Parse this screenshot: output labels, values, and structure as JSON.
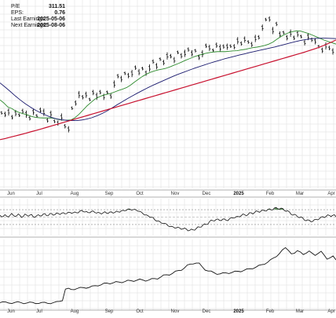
{
  "stats": [
    {
      "label": "P/E",
      "value": "311.51"
    },
    {
      "label": "EPS:",
      "value": "0.76"
    },
    {
      "label": "Last Earnings:",
      "value": "2025-05-06"
    },
    {
      "label": "Next Earnings:",
      "value": "2025-08-06"
    }
  ],
  "colors": {
    "price": "#000000",
    "sma_short": "#2e8b2e",
    "sma_mid": "#1a1a6e",
    "sma_long": "#c8102e",
    "indicator_fill": "#3d7a3d",
    "grid": "#dddddd",
    "panel_border": "#999999"
  },
  "chart_data": [
    {
      "type": "line",
      "panel": "price",
      "x_tick_labels": [
        "Jun",
        "Jul",
        "Aug",
        "Sep",
        "Oct",
        "Nov",
        "Dec",
        "2025",
        "Feb",
        "Mar",
        "Apr"
      ],
      "ylim": [
        0,
        100
      ],
      "grid": true,
      "series": [
        {
          "key": "price",
          "values": [
            40.1,
            39.3,
            40.6,
            37.8,
            40.0,
            38.9,
            40.9,
            39.4,
            37.2,
            40.6,
            38.5,
            41.5,
            40.4,
            36.1,
            39.6,
            35.6,
            34.7,
            37.9,
            33.0,
            31.4,
            42.6,
            45.3,
            49.8,
            48.4,
            49.7,
            47.2,
            50.9,
            48.9,
            51.1,
            48.6,
            51.0,
            48.9,
            55.4,
            59.6,
            58.1,
            61.1,
            59.9,
            61.0,
            64.1,
            61.7,
            63.6,
            61.2,
            63.9,
            67.3,
            64.9,
            68.6,
            66.8,
            70.3,
            70.2,
            68.1,
            72.2,
            70.4,
            71.7,
            73.7,
            71.7,
            73.1,
            69.6,
            71.5,
            75.7,
            74.6,
            73.3,
            76.0,
            74.5,
            75.3,
            75.2,
            75.5,
            75.2,
            78.4,
            76.9,
            79.0,
            77.7,
            76.4,
            79.6,
            80.2,
            85.3,
            89.6,
            89.9,
            83.8,
            87.3,
            81.7,
            82.7,
            80.0,
            82.4,
            79.9,
            82.0,
            80.6,
            77.3,
            80.6,
            78.9,
            78.1,
            75.3,
            73.3,
            75.6,
            74.5,
            72.7
          ]
        },
        {
          "key": "sma_short",
          "values": [
            47.0,
            45.3,
            43.2,
            42.4,
            41.0,
            40.2,
            39.6,
            39.0,
            38.2,
            37.7,
            37.5,
            37.4,
            37.4,
            37.4,
            37.0,
            36.5,
            36.3,
            36.2,
            36.4,
            37.6,
            39.4,
            41.6,
            43.8,
            45.6,
            47.4,
            48.5,
            49.4,
            49.9,
            50.4,
            51.2,
            52.0,
            52.7,
            53.5,
            54.8,
            56.4,
            57.9,
            59.4,
            60.6,
            61.6,
            62.3,
            62.9,
            63.3,
            63.8,
            64.5,
            65.4,
            66.2,
            67.1,
            68.1,
            68.9,
            69.8,
            70.5,
            71.1,
            71.7,
            72.1,
            72.4,
            72.6,
            72.6,
            72.6,
            72.8,
            73.0,
            73.1,
            73.5,
            73.8,
            74.3,
            74.7,
            75.0,
            75.4,
            75.9,
            76.6,
            77.6,
            79.1,
            80.5,
            81.7,
            82.6,
            83.2,
            83.6,
            83.5,
            82.9,
            82.2,
            81.4,
            80.5,
            79.6,
            78.7,
            78.0,
            77.3,
            76.6
          ]
        },
        {
          "key": "sma_mid",
          "values": [
            56.0,
            53.8,
            51.5,
            49.1,
            46.9,
            44.9,
            43.1,
            41.5,
            40.1,
            38.9,
            37.8,
            37.0,
            36.5,
            36.2,
            36.0,
            36.0,
            36.3,
            36.8,
            37.5,
            38.5,
            39.7,
            41.1,
            42.7,
            44.4,
            46.0,
            47.6,
            49.1,
            50.6,
            52.0,
            53.4,
            54.7,
            55.9,
            57.1,
            58.3,
            59.5,
            60.6,
            61.6,
            62.6,
            63.6,
            64.5,
            65.4,
            66.3,
            67.1,
            67.9,
            68.7,
            69.4,
            70.1,
            70.8,
            71.4,
            72.1,
            72.7,
            73.3,
            73.9,
            74.5,
            75.1,
            75.8,
            76.5,
            77.2,
            77.9,
            78.5,
            79.0,
            79.4,
            79.6,
            79.7,
            79.7,
            79.6,
            79.5
          ]
        },
        {
          "key": "sma_long",
          "values": [
            25.9,
            26.5,
            27.2,
            27.9,
            28.6,
            29.3,
            30.1,
            30.8,
            31.6,
            32.4,
            33.2,
            34.0,
            34.8,
            35.6,
            36.4,
            37.2,
            38.0,
            38.8,
            39.6,
            40.4,
            41.2,
            42.0,
            42.8,
            43.6,
            44.4,
            45.2,
            46.0,
            46.8,
            47.6,
            48.4,
            49.2,
            50.0,
            50.8,
            51.6,
            52.4,
            53.2,
            54.0,
            54.8,
            55.6,
            56.4,
            57.2,
            58.0,
            58.8,
            59.6,
            60.4,
            61.2,
            62.0,
            62.8,
            63.6,
            64.4,
            65.2,
            66.0,
            66.8,
            67.6,
            68.4,
            69.2,
            70.0,
            70.8,
            71.6,
            72.4,
            73.3,
            74.2,
            75.2,
            76.3,
            77.5,
            78.8
          ]
        }
      ]
    },
    {
      "type": "area",
      "panel": "indicator",
      "ylim": [
        0,
        100
      ],
      "reference_lines": [
        50,
        70,
        30
      ],
      "values": [
        55.0,
        50.6,
        52.2,
        56.6,
        52.6,
        50.3,
        54.8,
        60.0,
        54.9,
        51.8,
        53.5,
        58.4,
        54.8,
        49.1,
        52.0,
        58.1,
        55.5,
        52.6,
        55.6,
        57.1,
        50.8,
        49.5,
        53.7,
        56.5,
        53.3,
        53.3,
        58.3,
        59.5,
        53.7,
        54.0,
        59.6,
        59.6,
        55.3,
        56.4,
        61.3,
        59.9,
        56.8,
        60.2,
        62.2,
        59.1,
        59.3,
        63.1,
        63.0,
        60.3,
        61.7,
        64.0,
        61.7,
        61.6,
        66.3,
        68.4,
        64.9,
        63.9,
        65.4,
        62.3,
        61.8,
        65.4,
        66.6,
        62.6,
        60.7,
        63.0,
        61.3,
        58.4,
        61.6,
        64.7,
        61.0,
        59.8,
        63.8,
        64.2,
        60.8,
        62.6,
        66.1,
        64.4,
        63.5,
        67.3,
        68.3,
        67.1,
        68.4,
        72.0,
        71.7,
        69.0,
        69.9,
        71.5,
        68.5,
        66.0,
        65.4,
        63.7,
        58.9,
        55.6,
        56.1,
        53.8,
        49.6,
        49.8,
        48.9,
        43.0,
        39.3,
        39.8,
        38.0,
        34.0,
        32.7,
        33.2,
        31.4,
        26.4,
        24.0,
        25.1,
        23.8,
        20.6,
        20.9,
        22.8,
        20.6,
        16.9,
        18.0,
        20.3,
        17.6,
        12.9,
        13.8,
        17.4,
        15.8,
        14.4,
        19.0,
        23.8,
        22.8,
        23.2,
        28.6,
        31.7,
        29.8,
        31.2,
        38.1,
        42.2,
        40.2,
        39.8,
        44.0,
        44.9,
        41.1,
        40.6,
        44.6,
        45.1,
        41.1,
        40.3,
        45.6,
        48.9,
        47.2,
        47.6,
        51.3,
        51.7,
        50.6,
        53.7,
        58.3,
        57.0,
        53.4,
        56.3,
        62.0,
        61.6,
        58.6,
        62.2,
        66.9,
        65.4,
        63.0,
        66.7,
        69.6,
        67.1,
        66.3,
        70.6,
        72.5,
        69.6,
        69.8,
        74.7,
        76.1,
        72.6,
        71.7,
        74.4,
        73.2,
        67.8,
        65.6,
        67.2,
        64.0,
        57.5,
        55.1,
        57.6,
        55.5,
        50.2,
        48.5,
        50.5,
        47.7,
        41.8,
        40.1,
        42.8,
        41.2,
        37.3,
        38.3,
        43.1,
        44.1,
        42.6,
        45.4,
        50.4,
        51.2,
        48.7,
        51.8,
        56.2,
        54.6,
        51.8,
        54.5,
        56.5,
        51.2
      ]
    },
    {
      "type": "line",
      "panel": "lower",
      "ylim": [
        0,
        100
      ],
      "values": [
        10.6,
        11.9,
        11.5,
        10.0,
        9.4,
        10.9,
        12.0,
        10.7,
        9.1,
        10.0,
        11.5,
        10.9,
        9.3,
        9.4,
        10.9,
        11.2,
        9.7,
        9.1,
        10.7,
        12.1,
        12.4,
        13.4,
        29.8,
        31.0,
        29.2,
        29.0,
        30.7,
        32.3,
        31.9,
        31.0,
        32.2,
        34.3,
        34.6,
        34.2,
        35.8,
        38.3,
        38.2,
        37.2,
        38.5,
        40.4,
        39.8,
        38.8,
        40.4,
        42.4,
        41.7,
        40.7,
        42.3,
        44.0,
        42.7,
        41.1,
        42.5,
        44.6,
        44.6,
        44.0,
        46.6,
        49.8,
        50.1,
        49.6,
        51.9,
        55.2,
        56.0,
        56.3,
        59.5,
        63.9,
        65.2,
        65.3,
        66.6,
        66.6,
        61.4,
        56.6,
        55.4,
        55.3,
        53.0,
        50.6,
        51.3,
        53.0,
        52.7,
        51.8,
        53.3,
        55.2,
        55.0,
        54.3,
        56.1,
        58.4,
        58.7,
        58.5,
        60.6,
        63.4,
        64.4,
        64.9,
        67.7,
        71.6,
        73.9,
        75.8,
        80.2,
        85.4,
        88.4,
        84.5,
        79.7,
        80.5,
        84.2,
        82.4,
        78.7,
        80.7,
        83.7,
        80.6,
        77.4,
        80.3,
        83.4,
        78.1,
        72.1,
        74.0,
        76.7,
        71.1
      ]
    }
  ]
}
